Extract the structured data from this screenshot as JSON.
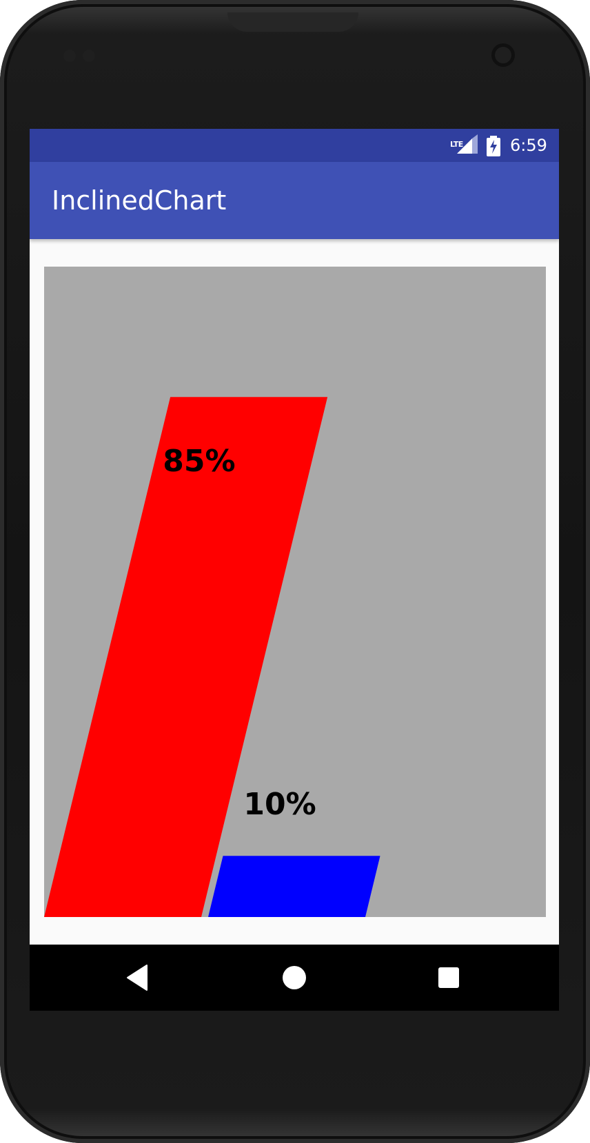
{
  "status_bar": {
    "network": "LTE",
    "time": "6:59"
  },
  "app_bar": {
    "title": "InclinedChart"
  },
  "colors": {
    "status_bar": "#303f9f",
    "app_bar": "#3f51b5",
    "chart_background": "#a9a9a9"
  },
  "chart_data": {
    "type": "bar",
    "style": "inclined",
    "categories": [
      "",
      ""
    ],
    "values": [
      85,
      10
    ],
    "labels": [
      "85%",
      "10%"
    ],
    "colors": [
      "#ff0000",
      "#0000ff"
    ],
    "ylim": [
      0,
      100
    ],
    "grid": false
  },
  "nav_bar": {
    "buttons": [
      "back-icon",
      "home-icon",
      "recents-icon"
    ]
  }
}
